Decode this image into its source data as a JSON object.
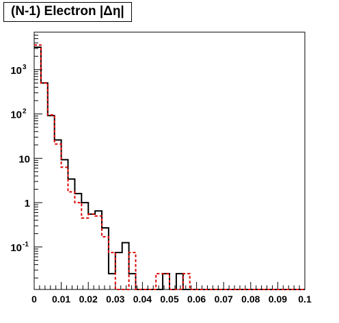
{
  "chart_data": {
    "type": "histogram",
    "title": "(N-1) Electron |Δη|",
    "xlim": [
      0,
      0.1
    ],
    "ylim": [
      0.011,
      7000
    ],
    "y_scale": "log",
    "grid": false,
    "bin_width": 0.0025,
    "x_ticks": [
      "0",
      "0.01",
      "0.02",
      "0.03",
      "0.04",
      "0.05",
      "0.06",
      "0.07",
      "0.08",
      "0.09",
      "0.1"
    ],
    "y_ticks": [
      {
        "value": 0.1,
        "base": "10",
        "exp": "-1"
      },
      {
        "value": 1,
        "base": "1",
        "exp": ""
      },
      {
        "value": 10,
        "base": "10",
        "exp": ""
      },
      {
        "value": 100,
        "base": "10",
        "exp": "2"
      },
      {
        "value": 1000,
        "base": "10",
        "exp": "3"
      }
    ],
    "series": [
      {
        "color": "#000000",
        "style": "solid",
        "values": [
          3200,
          500,
          92,
          26,
          9.3,
          3.4,
          1.6,
          1.0,
          0.55,
          0.65,
          0.27,
          0.025,
          0.075,
          0.125,
          0.025,
          0,
          0,
          0,
          0,
          0.025,
          0,
          0.025,
          0,
          0,
          0,
          0,
          0,
          0,
          0,
          0,
          0,
          0,
          0,
          0,
          0,
          0,
          0,
          0,
          0,
          0
        ]
      },
      {
        "color": "#dd0000",
        "style": "dashed",
        "values": [
          3600,
          500,
          95,
          21,
          6.3,
          1.75,
          1.0,
          0.45,
          0.55,
          0.5,
          0.17,
          0.075,
          0,
          0,
          0.075,
          0,
          0,
          0,
          0.025,
          0.025,
          0,
          0,
          0.025,
          0,
          0,
          0,
          0,
          0,
          0,
          0,
          0,
          0,
          0,
          0,
          0,
          0,
          0,
          0,
          0,
          0
        ]
      }
    ]
  }
}
